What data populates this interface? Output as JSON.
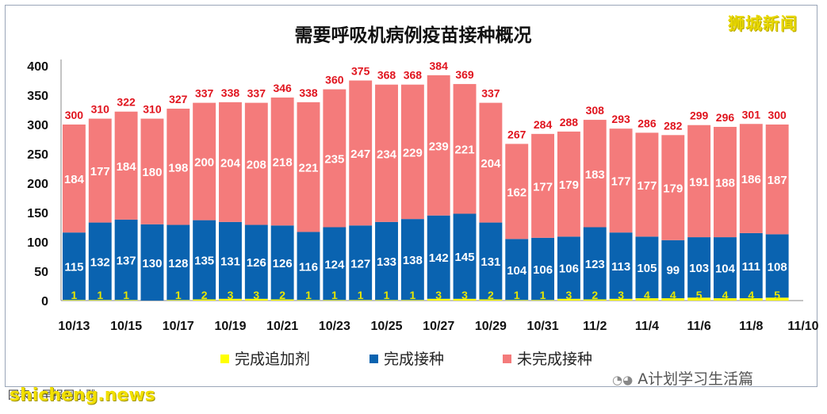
{
  "chart_data": {
    "type": "bar",
    "stacked": true,
    "title": "需要呼吸机病例疫苗接种概况",
    "categories": [
      "10/13",
      "10/14",
      "10/15",
      "10/16",
      "10/17",
      "10/18",
      "10/19",
      "10/20",
      "10/21",
      "10/22",
      "10/23",
      "10/24",
      "10/25",
      "10/26",
      "10/27",
      "10/28",
      "10/29",
      "10/30",
      "10/31",
      "11/1",
      "11/2",
      "11/3",
      "11/4",
      "11/5",
      "11/6",
      "11/7",
      "11/8",
      "11/9"
    ],
    "xtick_labels": [
      "10/13",
      "10/15",
      "10/17",
      "10/19",
      "10/21",
      "10/23",
      "10/25",
      "10/27",
      "10/29",
      "10/31",
      "11/2",
      "11/4",
      "11/6",
      "11/8",
      "11/10"
    ],
    "series": [
      {
        "name": "完成追加剂",
        "color": "#ffff00",
        "label_color": "#e6e600",
        "values": [
          1,
          1,
          1,
          0,
          1,
          2,
          3,
          3,
          2,
          1,
          1,
          1,
          1,
          1,
          3,
          3,
          2,
          1,
          1,
          3,
          2,
          3,
          4,
          4,
          5,
          4,
          4,
          5
        ]
      },
      {
        "name": "完成接种",
        "color": "#0a63b0",
        "label_color": "#ffffff",
        "values": [
          115,
          132,
          137,
          130,
          128,
          135,
          131,
          126,
          126,
          116,
          124,
          127,
          133,
          138,
          142,
          145,
          131,
          104,
          106,
          106,
          123,
          113,
          105,
          99,
          103,
          104,
          111,
          108
        ]
      },
      {
        "name": "未完成接种",
        "color": "#f47b7b",
        "label_color": "#ffffff",
        "values": [
          184,
          177,
          184,
          180,
          198,
          200,
          204,
          208,
          218,
          221,
          235,
          247,
          234,
          229,
          239,
          221,
          204,
          162,
          177,
          179,
          183,
          177,
          177,
          179,
          191,
          188,
          186,
          187
        ]
      }
    ],
    "totals": [
      300,
      310,
      322,
      310,
      327,
      337,
      338,
      337,
      346,
      338,
      360,
      375,
      368,
      368,
      384,
      369,
      337,
      267,
      284,
      288,
      308,
      293,
      286,
      282,
      299,
      296,
      301,
      300
    ],
    "ylim": [
      0,
      400
    ],
    "yticks": [
      0,
      50,
      100,
      150,
      200,
      250,
      300,
      350,
      400
    ],
    "grid": false,
    "legend_position": "bottom"
  },
  "watermarks": {
    "top_right": "狮城新闻",
    "social": "A计划学习生活篇",
    "source": "图表：早报网小雅",
    "bottom_left": "shicheng.news"
  }
}
